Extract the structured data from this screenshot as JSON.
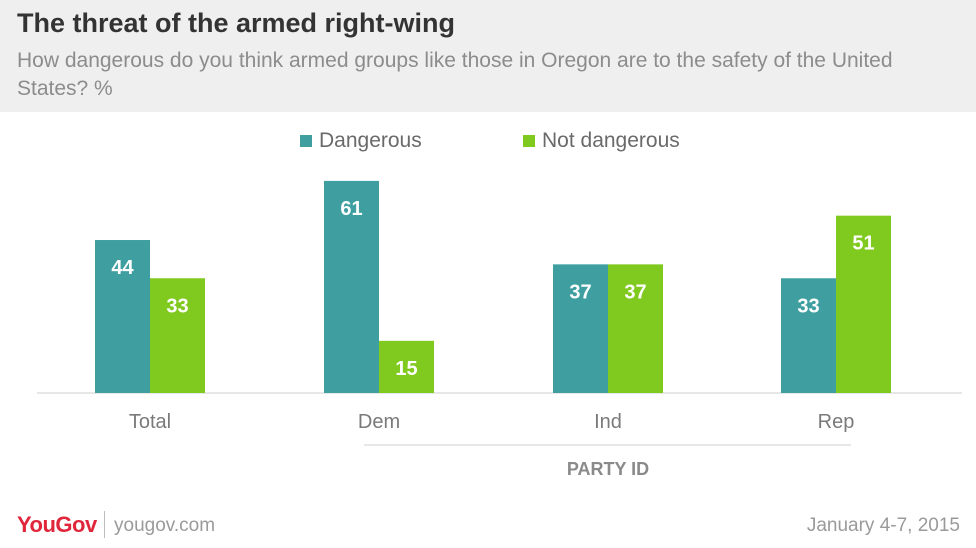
{
  "header": {
    "title": "The threat of the armed right-wing",
    "subtitle": "How dangerous do you think armed groups like those in Oregon are to the safety of the United States? %"
  },
  "colors": {
    "dangerous": "#3f9fa0",
    "not_dangerous": "#80c91f"
  },
  "chart_data": {
    "type": "bar",
    "categories": [
      "Total",
      "Dem",
      "Ind",
      "Rep"
    ],
    "series": [
      {
        "name": "Dangerous",
        "values": [
          44,
          61,
          37,
          33
        ]
      },
      {
        "name": "Not dangerous",
        "values": [
          33,
          15,
          37,
          51
        ]
      }
    ],
    "group_label": "PARTY ID",
    "ylim": [
      0,
      65
    ],
    "grid": false,
    "legend_position": "top-center"
  },
  "footer": {
    "brand": "YouGov",
    "url": "yougov.com",
    "date": "January 4-7, 2015"
  }
}
